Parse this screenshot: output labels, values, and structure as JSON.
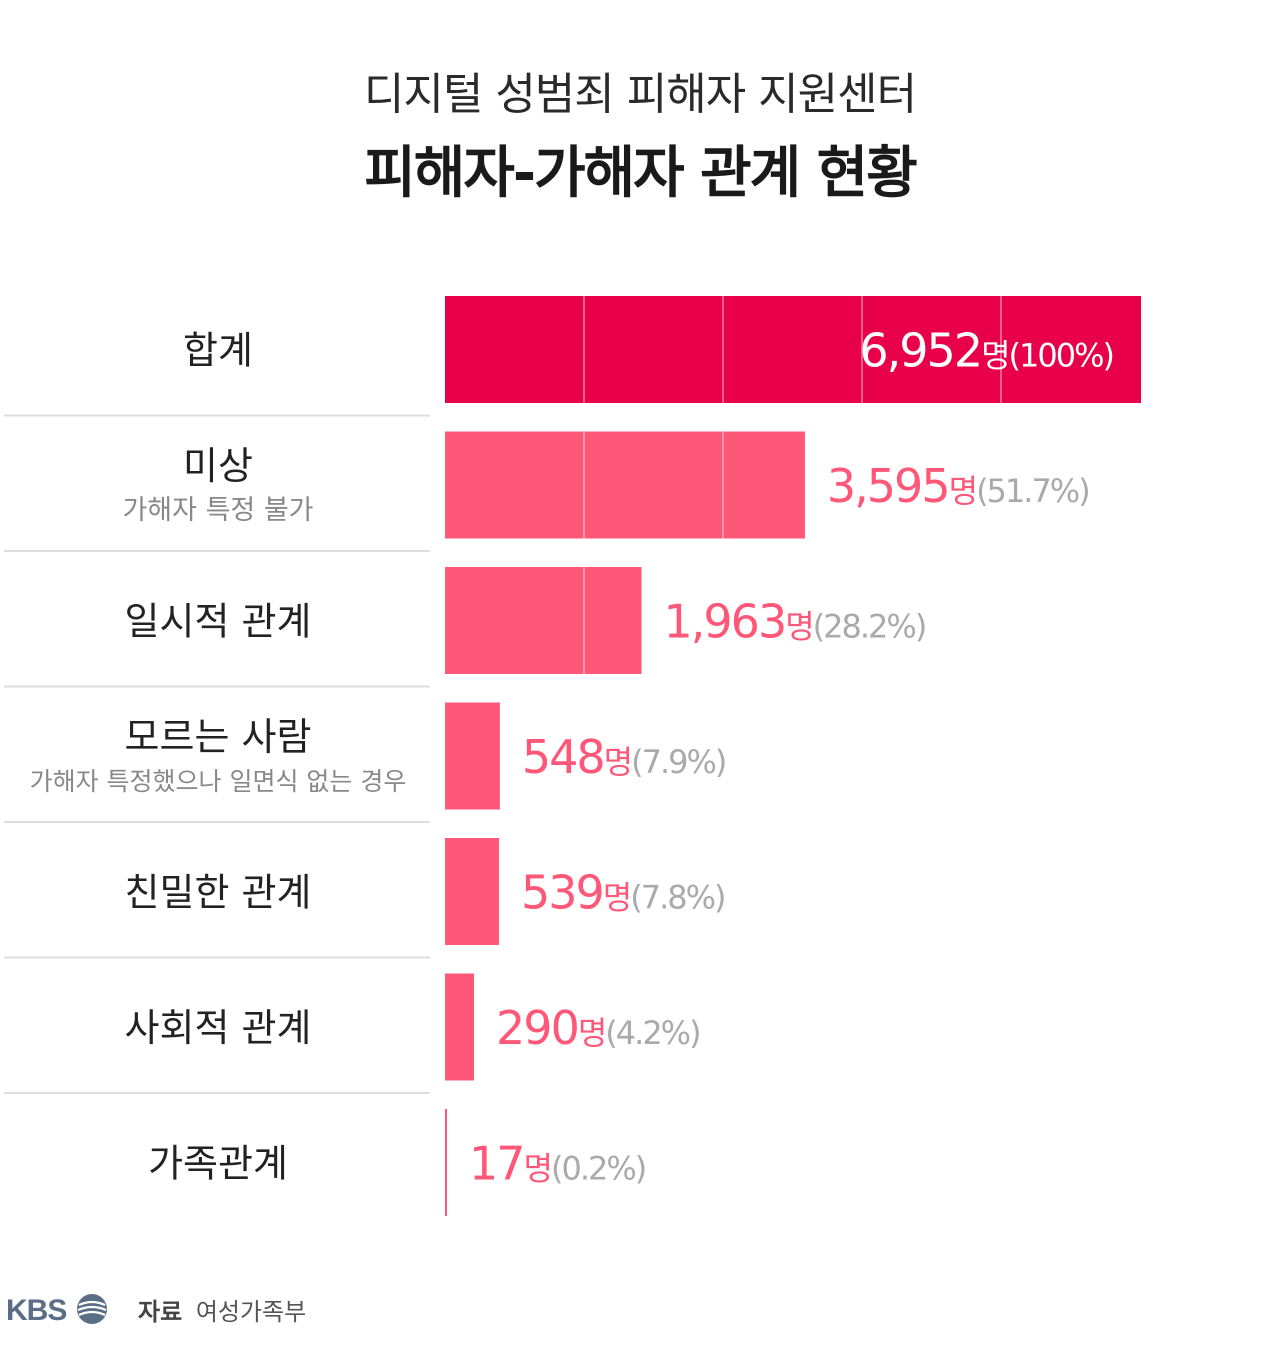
{
  "header": {
    "subtitle": "디지털 성범죄 피해자 지원센터",
    "title": "피해자-가해자 관계 현황"
  },
  "footer": {
    "brand": "KBS",
    "source_key": "자료",
    "source_value": "여성가족부"
  },
  "colors": {
    "total_bar": "#e8004a",
    "bar": "#ff5777",
    "value_text": "#ff5777",
    "pct_text": "#aaaaaa",
    "divider": "#dddddd",
    "logo": "#5a6e86"
  },
  "chart_data": {
    "type": "bar",
    "orientation": "horizontal",
    "title": "피해자-가해자 관계 현황",
    "xlim": [
      0,
      6952
    ],
    "grid": true,
    "rows": [
      {
        "category": "합계",
        "sublabel": "",
        "value": 6952,
        "value_label": "6,952",
        "unit": "명",
        "pct_label": "(100%)",
        "total": true
      },
      {
        "category": "미상",
        "sublabel": "가해자 특정 불가",
        "value": 3595,
        "value_label": "3,595",
        "unit": "명",
        "pct_label": "(51.7%)",
        "total": false
      },
      {
        "category": "일시적 관계",
        "sublabel": "",
        "value": 1963,
        "value_label": "1,963",
        "unit": "명",
        "pct_label": "(28.2%)",
        "total": false
      },
      {
        "category": "모르는 사람",
        "sublabel": "가해자 특정했으나 일면식 없는 경우",
        "value": 548,
        "value_label": "548",
        "unit": "명",
        "pct_label": "(7.9%)",
        "total": false
      },
      {
        "category": "친밀한 관계",
        "sublabel": "",
        "value": 539,
        "value_label": "539",
        "unit": "명",
        "pct_label": "(7.8%)",
        "total": false
      },
      {
        "category": "사회적 관계",
        "sublabel": "",
        "value": 290,
        "value_label": "290",
        "unit": "명",
        "pct_label": "(4.2%)",
        "total": false
      },
      {
        "category": "가족관계",
        "sublabel": "",
        "value": 17,
        "value_label": "17",
        "unit": "명",
        "pct_label": "(0.2%)",
        "total": false
      }
    ]
  }
}
